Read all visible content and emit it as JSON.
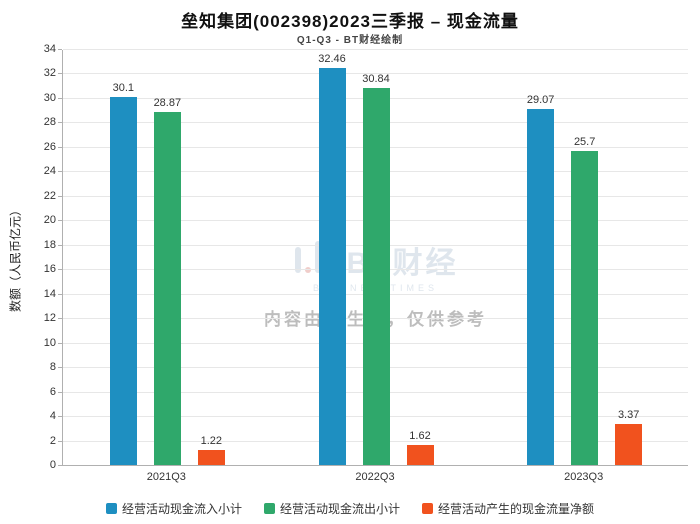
{
  "title": "垒知集团(002398)2023三季报 – 现金流量",
  "subtitle": "Q1-Q3 - BT财经绘制",
  "watermark": {
    "logo_text": "BT财经",
    "logo_sub": "BUSINESSTIMES",
    "disclaimer": "内容由AI生成，仅供参考"
  },
  "chart_data": {
    "type": "bar",
    "categories": [
      "2021Q3",
      "2022Q3",
      "2023Q3"
    ],
    "series": [
      {
        "name": "经营活动现金流入小计",
        "color": "#1e8fc1",
        "values": [
          30.1,
          32.46,
          29.07
        ]
      },
      {
        "name": "经营活动现金流出小计",
        "color": "#2fa86b",
        "values": [
          28.87,
          30.84,
          25.7
        ]
      },
      {
        "name": "经营活动产生的现金流量净额",
        "color": "#f1521e",
        "values": [
          1.22,
          1.62,
          3.37
        ]
      }
    ],
    "title": "垒知集团(002398)2023三季报 – 现金流量",
    "xlabel": "",
    "ylabel": "数额（人民币亿元）",
    "ylim": [
      0,
      34
    ],
    "ytick_step": 2,
    "grid": true,
    "legend_position": "bottom"
  }
}
